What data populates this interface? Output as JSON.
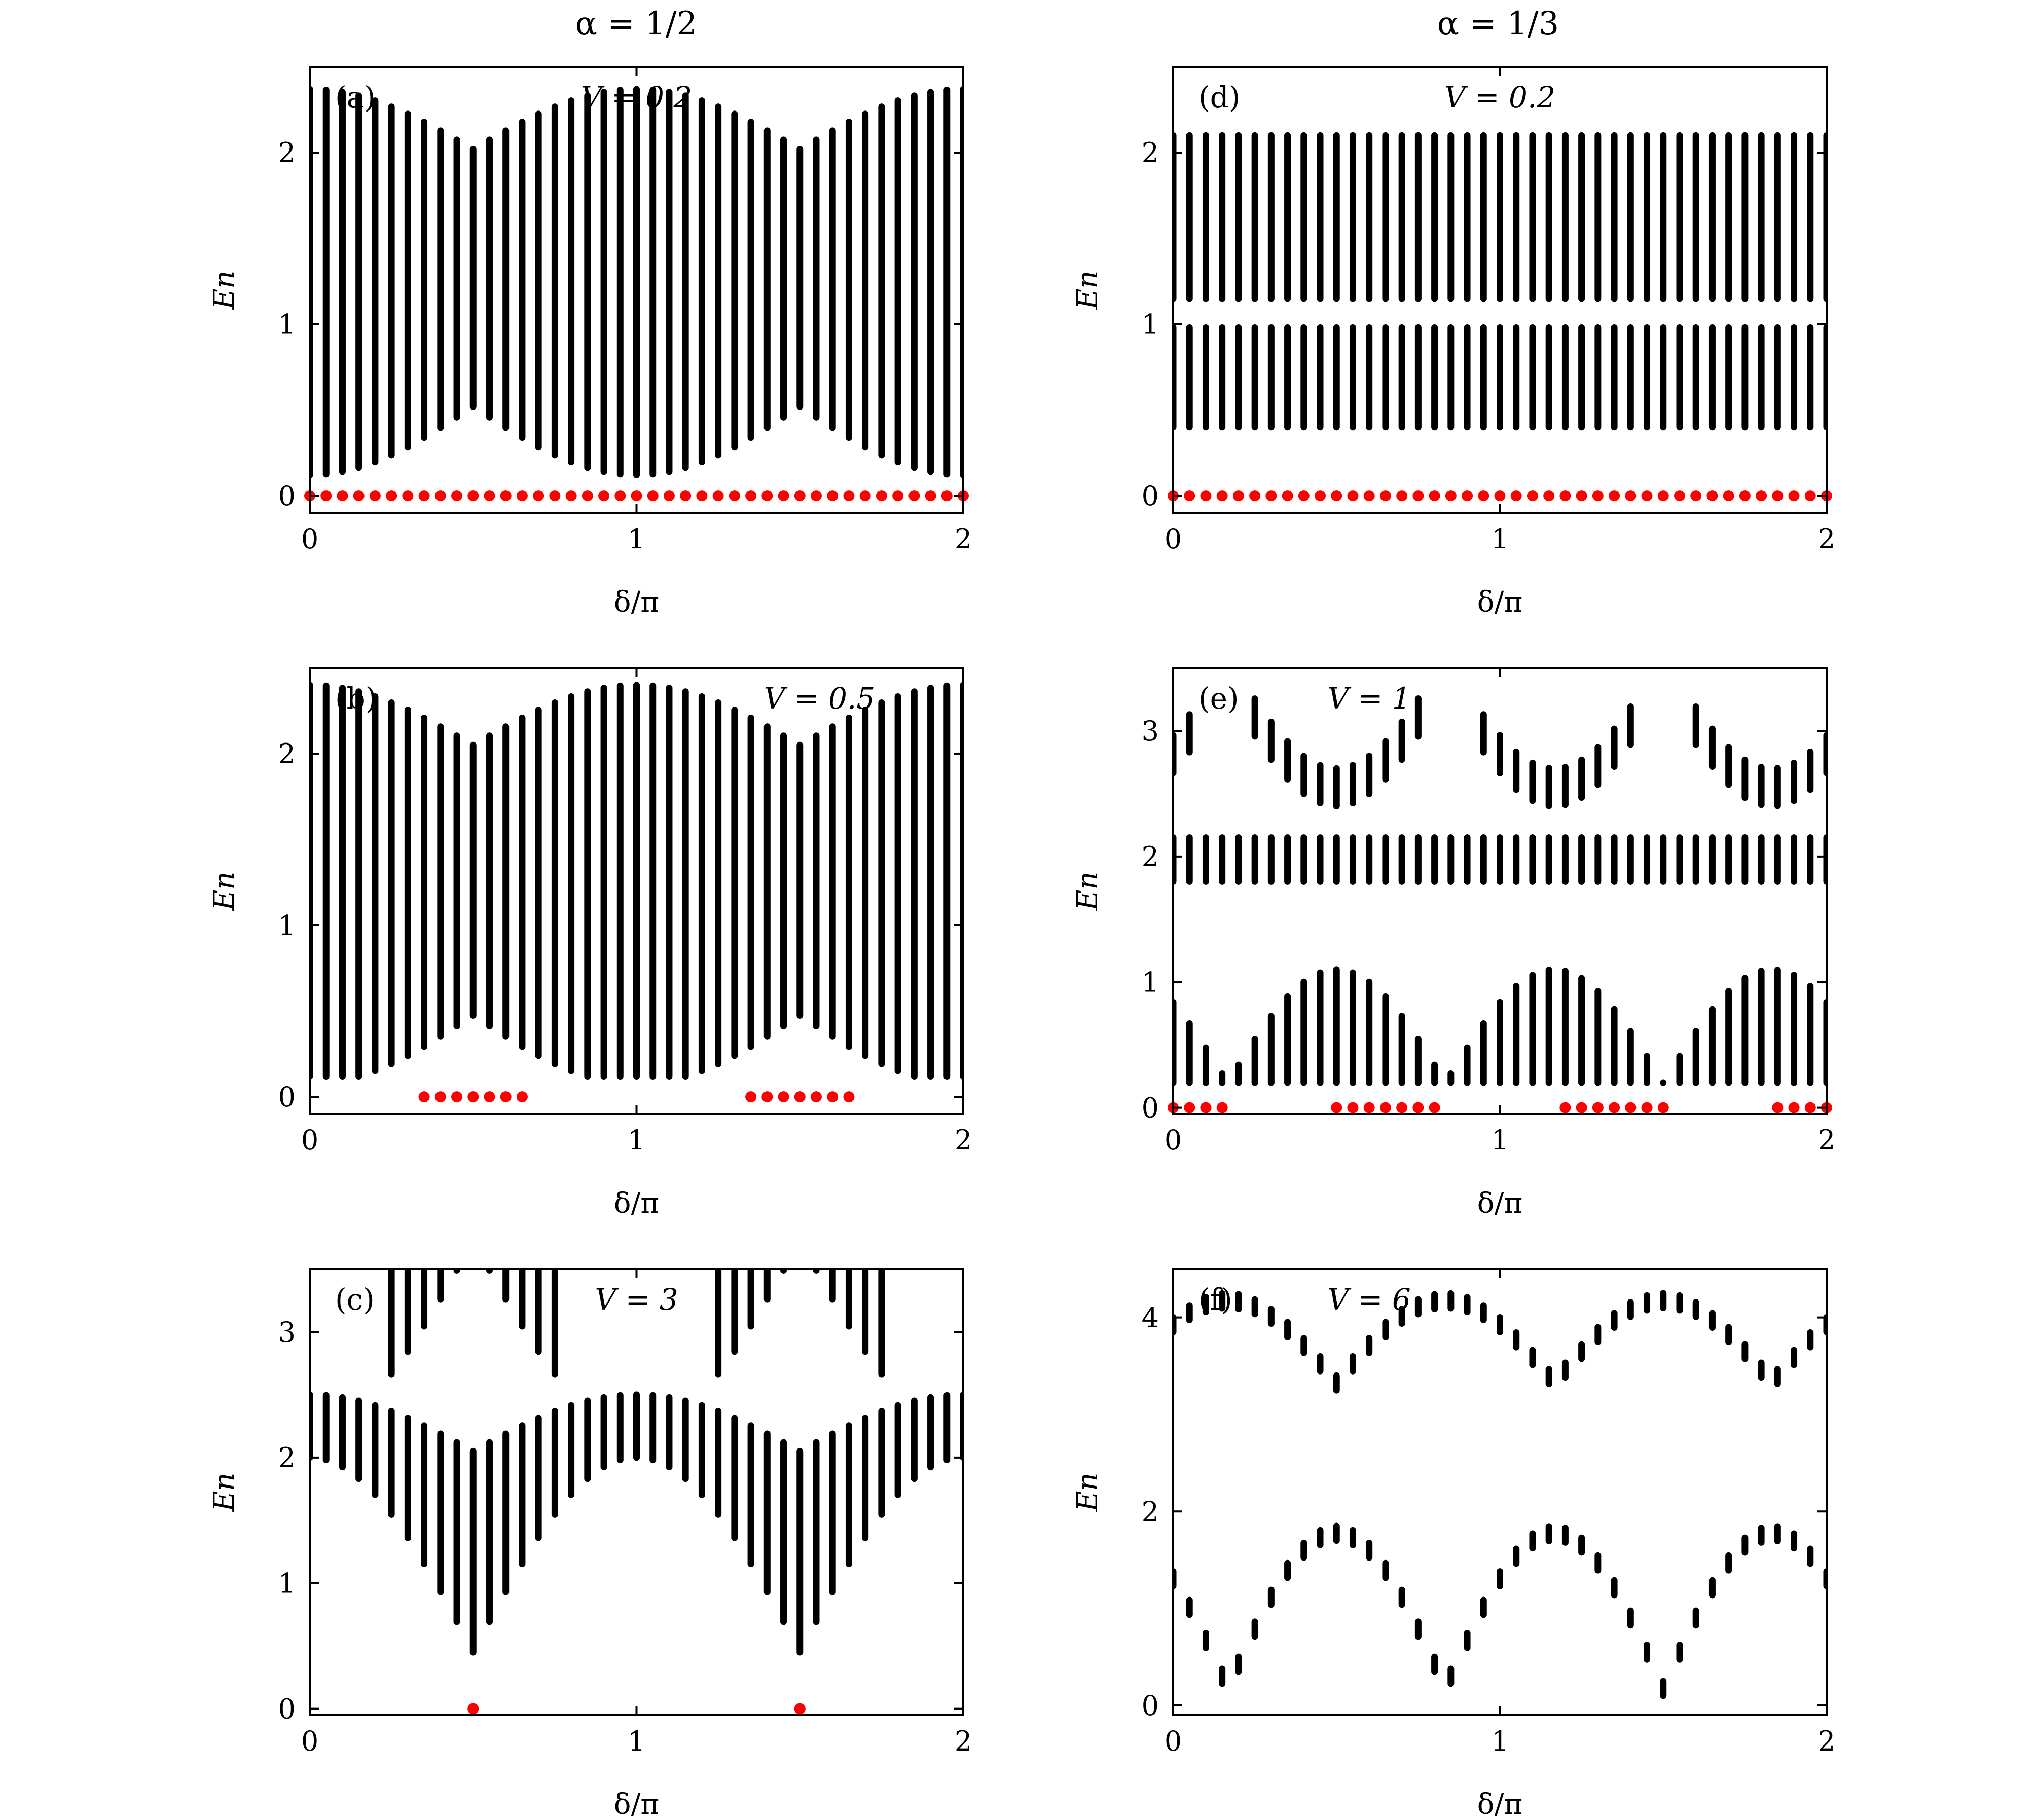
{
  "figure": {
    "column_titles": [
      "α = 1/2",
      "α = 1/3"
    ],
    "colors": {
      "bulk_states": "#000000",
      "zero_modes": "#ff0000"
    }
  },
  "chart_data": [
    {
      "id": "a",
      "type": "scatter",
      "label": "(a)",
      "v_label": "V = 0.2",
      "xlabel": "δ/π",
      "ylabel": "En",
      "xlim": [
        0,
        2
      ],
      "ylim": [
        -0.1,
        2.5
      ],
      "xticks": [
        0,
        1,
        2
      ],
      "yticks": [
        0,
        1,
        2
      ],
      "bands": {
        "generator": "alpha_half",
        "V": 0.2,
        "k_max": 2,
        "n_columns": 41,
        "max_energy": 2.5
      },
      "red_points": {
        "x": [
          0,
          0.05,
          0.1,
          0.15,
          0.2,
          0.25,
          0.3,
          0.35,
          0.4,
          0.45,
          0.5,
          0.55,
          0.6,
          0.65,
          0.7,
          0.75,
          0.8,
          0.85,
          0.9,
          0.95,
          1.0,
          1.05,
          1.1,
          1.15,
          1.2,
          1.25,
          1.3,
          1.35,
          1.4,
          1.45,
          1.5,
          1.55,
          1.6,
          1.65,
          1.7,
          1.75,
          1.8,
          1.85,
          1.9,
          1.95,
          2.0
        ],
        "y": 0
      }
    },
    {
      "id": "b",
      "type": "scatter",
      "label": "(b)",
      "v_label": "V = 0.5",
      "xlabel": "δ/π",
      "ylabel": "En",
      "xlim": [
        0,
        2
      ],
      "ylim": [
        -0.1,
        2.5
      ],
      "xticks": [
        0,
        1,
        2
      ],
      "yticks": [
        0,
        1,
        2
      ],
      "bands": {
        "generator": "alpha_half",
        "V": 0.5,
        "k_max": 2,
        "n_columns": 41,
        "max_energy": 2.5
      },
      "red_points": {
        "x": [
          0.35,
          0.4,
          0.45,
          0.5,
          0.55,
          0.6,
          0.65,
          1.35,
          1.4,
          1.45,
          1.5,
          1.55,
          1.6,
          1.65
        ],
        "y": 0
      }
    },
    {
      "id": "c",
      "type": "scatter",
      "label": "(c)",
      "v_label": "V = 3",
      "xlabel": "δ/π",
      "ylabel": "En",
      "xlim": [
        0,
        2
      ],
      "ylim": [
        -0.05,
        3.5
      ],
      "xticks": [
        0,
        1,
        2
      ],
      "yticks": [
        0,
        1,
        2,
        3
      ],
      "bands": {
        "generator": "alpha_half",
        "V": 3,
        "k_max": 2,
        "n_columns": 41,
        "max_energy": 3.5
      },
      "red_points": {
        "x": [
          0.5,
          1.5
        ],
        "y": 0
      }
    },
    {
      "id": "d",
      "type": "scatter",
      "label": "(d)",
      "v_label": "V = 0.2",
      "xlabel": "δ/π",
      "ylabel": "En",
      "xlim": [
        0,
        2
      ],
      "ylim": [
        -0.1,
        2.5
      ],
      "xticks": [
        0,
        1,
        2
      ],
      "yticks": [
        0,
        1,
        2
      ],
      "bands": {
        "generator": "alpha_third",
        "V": 0.2,
        "k_max": 3,
        "n_columns": 41,
        "max_energy": 2.5
      },
      "red_points": {
        "x": [
          0,
          0.05,
          0.1,
          0.15,
          0.2,
          0.25,
          0.3,
          0.35,
          0.4,
          0.45,
          0.5,
          0.55,
          0.6,
          0.65,
          0.7,
          0.75,
          0.8,
          0.85,
          0.9,
          0.95,
          1.0,
          1.05,
          1.1,
          1.15,
          1.2,
          1.25,
          1.3,
          1.35,
          1.4,
          1.45,
          1.5,
          1.55,
          1.6,
          1.65,
          1.7,
          1.75,
          1.8,
          1.85,
          1.9,
          1.95,
          2.0
        ],
        "y": 0
      }
    },
    {
      "id": "e",
      "type": "scatter",
      "label": "(e)",
      "v_label": "V = 1",
      "xlabel": "δ/π",
      "ylabel": "En",
      "xlim": [
        0,
        2
      ],
      "ylim": [
        -0.05,
        3.5
      ],
      "xticks": [
        0,
        1,
        2
      ],
      "yticks": [
        0,
        1,
        2,
        3
      ],
      "bands": {
        "generator": "alpha_third",
        "V": 1,
        "k_max": 3,
        "n_columns": 41,
        "max_energy": 3.5
      },
      "red_points": {
        "x": [
          0,
          0.05,
          0.1,
          0.15,
          0.5,
          0.55,
          0.6,
          0.65,
          0.7,
          0.75,
          0.8,
          1.2,
          1.25,
          1.3,
          1.35,
          1.4,
          1.45,
          1.5,
          1.85,
          1.9,
          1.95,
          2.0
        ],
        "y": 0
      }
    },
    {
      "id": "f",
      "type": "scatter",
      "label": "(f)",
      "v_label": "V = 6",
      "xlabel": "δ/π",
      "ylabel": "En",
      "xlim": [
        0,
        2
      ],
      "ylim": [
        -0.1,
        4.5
      ],
      "xticks": [
        0,
        1,
        2
      ],
      "yticks": [
        0,
        2,
        4
      ],
      "bands": {
        "generator": "alpha_third",
        "V": 6,
        "k_max": 3,
        "n_columns": 41,
        "max_energy": 4.5
      },
      "red_points": {
        "x": [],
        "y": 0
      }
    }
  ]
}
